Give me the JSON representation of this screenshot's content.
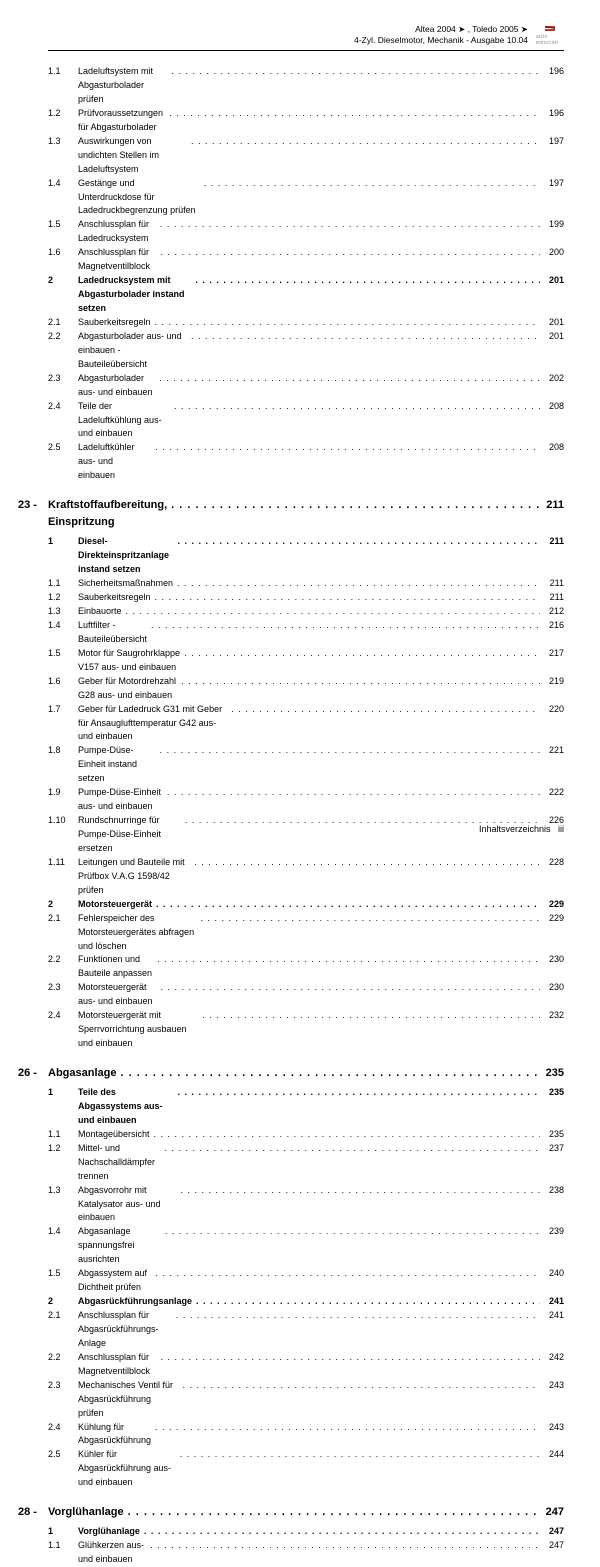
{
  "header": {
    "line1": "Altea 2004 ➤ , Toledo 2005 ➤",
    "line2": "4-Zyl. Dieselmotor, Mechanik - Ausgabe 10.04",
    "logo_brand": "SEAT",
    "logo_sub": "auto emoción"
  },
  "footer": {
    "label": "Inhaltsverzeichnis",
    "page": "iii"
  },
  "toc": [
    {
      "type": "sub",
      "num": "1.1",
      "title": "Ladeluftsystem mit Abgasturbolader prüfen",
      "page": "196"
    },
    {
      "type": "sub",
      "num": "1.2",
      "title": "Prüfvoraussetzungen für Abgasturbolader",
      "page": "196"
    },
    {
      "type": "sub",
      "num": "1.3",
      "title": "Auswirkungen von undichten Stellen im Ladeluftsystem",
      "page": "197"
    },
    {
      "type": "sub",
      "num": "1.4",
      "title": "Gestänge und Unterdruckdose für Ladedruckbegrenzung prüfen",
      "page": "197"
    },
    {
      "type": "sub",
      "num": "1.5",
      "title": "Anschlussplan für Ladedrucksystem",
      "page": "199"
    },
    {
      "type": "sub",
      "num": "1.6",
      "title": "Anschlussplan für Magnetventilblock",
      "page": "200"
    },
    {
      "type": "section",
      "num": "2",
      "title": "Ladedrucksystem mit Abgasturbolader instand setzen",
      "page": "201"
    },
    {
      "type": "sub",
      "num": "2.1",
      "title": "Sauberkeitsregeln",
      "page": "201"
    },
    {
      "type": "sub",
      "num": "2.2",
      "title": "Abgasturbolader aus- und einbauen - Bauteileübersicht",
      "page": "201"
    },
    {
      "type": "sub",
      "num": "2.3",
      "title": "Abgasturbolader aus- und einbauen",
      "page": "202"
    },
    {
      "type": "sub",
      "num": "2.4",
      "title": "Teile der Ladeluftkühlung aus- und einbauen",
      "page": "208"
    },
    {
      "type": "sub",
      "num": "2.5",
      "title": "Ladeluftkühler aus- und einbauen",
      "page": "208"
    },
    {
      "type": "chapter",
      "num": "23 -",
      "title": "Kraftstoffaufbereitung, Einspritzung",
      "page": "211"
    },
    {
      "type": "section",
      "num": "1",
      "title": "Diesel-Direkteinspritzanlage instand setzen",
      "page": "211"
    },
    {
      "type": "sub",
      "num": "1.1",
      "title": "Sicherheitsmaßnahmen",
      "page": "211"
    },
    {
      "type": "sub",
      "num": "1.2",
      "title": "Sauberkeitsregeln",
      "page": "211"
    },
    {
      "type": "sub",
      "num": "1.3",
      "title": "Einbauorte",
      "page": "212"
    },
    {
      "type": "sub",
      "num": "1.4",
      "title": "Luftfilter - Bauteileübersicht",
      "page": "216"
    },
    {
      "type": "sub",
      "num": "1.5",
      "title": "Motor für Saugrohrklappe V157 aus- und einbauen",
      "page": "217"
    },
    {
      "type": "sub",
      "num": "1.6",
      "title": "Geber für Motordrehzahl G28 aus- und einbauen",
      "page": "219"
    },
    {
      "type": "sub",
      "num": "1.7",
      "title": "Geber für Ladedruck G31 mit Geber für Ansauglufttemperatur G42 aus- und einbauen",
      "page": "220"
    },
    {
      "type": "sub",
      "num": "1.8",
      "title": "Pumpe-Düse-Einheit instand setzen",
      "page": "221"
    },
    {
      "type": "sub",
      "num": "1.9",
      "title": "Pumpe-Düse-Einheit aus- und einbauen",
      "page": "222"
    },
    {
      "type": "sub",
      "num": "1.10",
      "title": "Rundschnurringe für Pumpe-Düse-Einheit ersetzen",
      "page": "226"
    },
    {
      "type": "sub",
      "num": "1.11",
      "title": "Leitungen und Bauteile mit Prüfbox V.A.G 1598/42 prüfen",
      "page": "228"
    },
    {
      "type": "section",
      "num": "2",
      "title": "Motorsteuergerät",
      "page": "229"
    },
    {
      "type": "sub",
      "num": "2.1",
      "title": "Fehlerspeicher des Motorsteuergerätes abfragen und löschen",
      "page": "229"
    },
    {
      "type": "sub",
      "num": "2.2",
      "title": "Funktionen und Bauteile anpassen",
      "page": "230"
    },
    {
      "type": "sub",
      "num": "2.3",
      "title": "Motorsteuergerät aus- und einbauen",
      "page": "230"
    },
    {
      "type": "sub",
      "num": "2.4",
      "title": "Motorsteuergerät mit Sperrvorrichtung ausbauen und einbauen",
      "page": "232"
    },
    {
      "type": "chapter",
      "num": "26 -",
      "title": "Abgasanlage",
      "page": "235"
    },
    {
      "type": "section",
      "num": "1",
      "title": "Teile des Abgassystems aus- und einbauen",
      "page": "235"
    },
    {
      "type": "sub",
      "num": "1.1",
      "title": "Montageübersicht",
      "page": "235"
    },
    {
      "type": "sub",
      "num": "1.2",
      "title": "Mittel- und Nachschalldämpfer trennen",
      "page": "237"
    },
    {
      "type": "sub",
      "num": "1.3",
      "title": "Abgasvorrohr mit Katalysator aus- und einbauen",
      "page": "238"
    },
    {
      "type": "sub",
      "num": "1.4",
      "title": "Abgasanlage spannungsfrei ausrichten",
      "page": "239"
    },
    {
      "type": "sub",
      "num": "1.5",
      "title": "Abgassystem auf Dichtheit prüfen",
      "page": "240"
    },
    {
      "type": "section",
      "num": "2",
      "title": "Abgasrückführungsanlage",
      "page": "241"
    },
    {
      "type": "sub",
      "num": "2.1",
      "title": "Anschlussplan für Abgasrückführungs-Anlage",
      "page": "241"
    },
    {
      "type": "sub",
      "num": "2.2",
      "title": "Anschlussplan für Magnetventilblock",
      "page": "242"
    },
    {
      "type": "sub",
      "num": "2.3",
      "title": "Mechanisches Ventil für Abgasrückführung prüfen",
      "page": "243"
    },
    {
      "type": "sub",
      "num": "2.4",
      "title": "Kühlung für Abgasrückführung",
      "page": "243"
    },
    {
      "type": "sub",
      "num": "2.5",
      "title": "Kühler für Abgasrückführung aus- und einbauen",
      "page": "244"
    },
    {
      "type": "chapter",
      "num": "28 -",
      "title": "Vorglühanlage",
      "page": "247"
    },
    {
      "type": "section",
      "num": "1",
      "title": "Vorglühanlage",
      "page": "247"
    },
    {
      "type": "sub",
      "num": "1.1",
      "title": "Glühkerzen aus- und einbauen",
      "page": "247"
    }
  ]
}
